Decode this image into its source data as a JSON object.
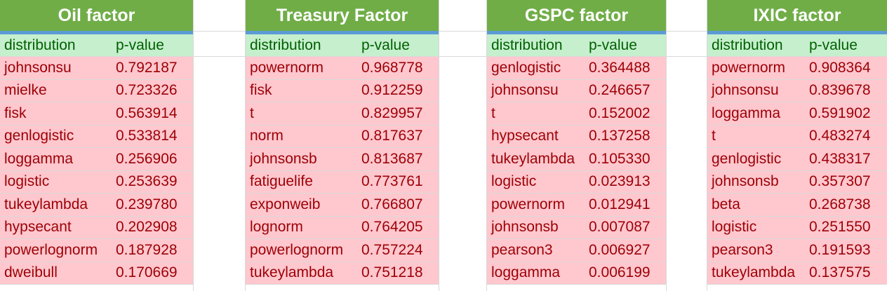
{
  "tables": [
    {
      "title": "Oil factor",
      "headers": [
        "distribution",
        "p-value"
      ],
      "rows": [
        [
          "johnsonsu",
          "0.792187"
        ],
        [
          "mielke",
          "0.723326"
        ],
        [
          "fisk",
          "0.563914"
        ],
        [
          "genlogistic",
          "0.533814"
        ],
        [
          "loggamma",
          "0.256906"
        ],
        [
          "logistic",
          "0.253639"
        ],
        [
          "tukeylambda",
          "0.239780"
        ],
        [
          "hypsecant",
          "0.202908"
        ],
        [
          "powerlognorm",
          "0.187928"
        ],
        [
          "dweibull",
          "0.170669"
        ]
      ]
    },
    {
      "title": "Treasury Factor",
      "headers": [
        "distribution",
        "p-value"
      ],
      "rows": [
        [
          "powernorm",
          "0.968778"
        ],
        [
          "fisk",
          "0.912259"
        ],
        [
          "t",
          "0.829957"
        ],
        [
          "norm",
          "0.817637"
        ],
        [
          "johnsonsb",
          "0.813687"
        ],
        [
          "fatiguelife",
          "0.773761"
        ],
        [
          "exponweib",
          "0.766807"
        ],
        [
          "lognorm",
          "0.764205"
        ],
        [
          "powerlognorm",
          "0.757224"
        ],
        [
          "tukeylambda",
          "0.751218"
        ]
      ]
    },
    {
      "title": "GSPC factor",
      "headers": [
        "distribution",
        "p-value"
      ],
      "rows": [
        [
          "genlogistic",
          "0.364488"
        ],
        [
          "johnsonsu",
          "0.246657"
        ],
        [
          "t",
          "0.152002"
        ],
        [
          "hypsecant",
          "0.137258"
        ],
        [
          "tukeylambda",
          "0.105330"
        ],
        [
          "logistic",
          "0.023913"
        ],
        [
          "powernorm",
          "0.012941"
        ],
        [
          "johnsonsb",
          "0.007087"
        ],
        [
          "pearson3",
          "0.006927"
        ],
        [
          "loggamma",
          "0.006199"
        ]
      ]
    },
    {
      "title": "IXIC factor",
      "headers": [
        "distribution",
        "p-value"
      ],
      "rows": [
        [
          "powernorm",
          "0.908364"
        ],
        [
          "johnsonsu",
          "0.839678"
        ],
        [
          "loggamma",
          "0.591902"
        ],
        [
          "t",
          "0.483274"
        ],
        [
          "genlogistic",
          "0.438317"
        ],
        [
          "johnsonsb",
          "0.357307"
        ],
        [
          "beta",
          "0.268738"
        ],
        [
          "logistic",
          "0.251550"
        ],
        [
          "pearson3",
          "0.191593"
        ],
        [
          "tukeylambda",
          "0.137575"
        ]
      ]
    }
  ],
  "colors": {
    "header_fill": "#70ad47",
    "header_border": "#5b9bd5",
    "col_header_fill": "#c6efce",
    "col_header_text": "#006100",
    "row_fill": "#ffc7ce",
    "row_text": "#9c0006"
  }
}
